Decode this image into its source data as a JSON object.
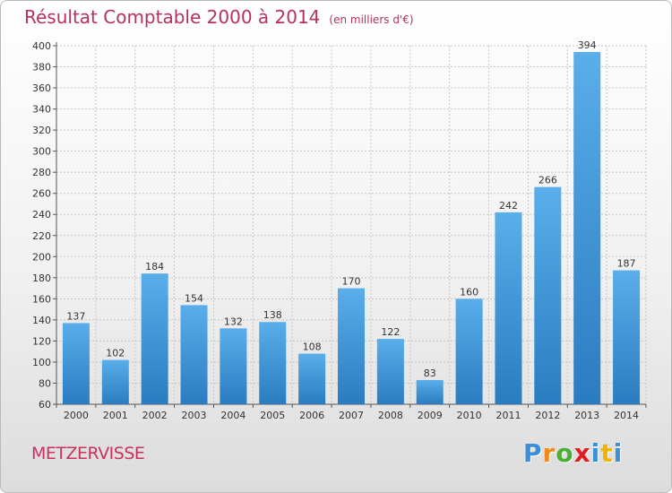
{
  "header": {
    "title": "Résultat Comptable 2000 à 2014",
    "unit": "(en milliers d'€)"
  },
  "commune": "METZERVISSE",
  "logo": {
    "letters": [
      "P",
      "r",
      "o",
      "x",
      "i",
      "t",
      "i"
    ],
    "colors": [
      "#3a8fd6",
      "#f08a1c",
      "#4caf35",
      "#e02020",
      "#3a8fd6",
      "#f0b400",
      "#3a8fd6"
    ]
  },
  "chart_data": {
    "type": "bar",
    "categories": [
      "2000",
      "2001",
      "2002",
      "2003",
      "2004",
      "2005",
      "2006",
      "2007",
      "2008",
      "2009",
      "2010",
      "2011",
      "2012",
      "2013",
      "2014"
    ],
    "values": [
      137,
      102,
      184,
      154,
      132,
      138,
      108,
      170,
      122,
      83,
      160,
      242,
      266,
      394,
      187
    ],
    "title": "Résultat Comptable 2000 à 2014",
    "xlabel": "",
    "ylabel": "",
    "ylim": [
      60,
      400
    ],
    "yticks": [
      60,
      80,
      100,
      120,
      140,
      160,
      180,
      200,
      220,
      240,
      260,
      280,
      300,
      320,
      340,
      360,
      380,
      400
    ],
    "grid": true,
    "bar_color": "#3b92d6"
  }
}
